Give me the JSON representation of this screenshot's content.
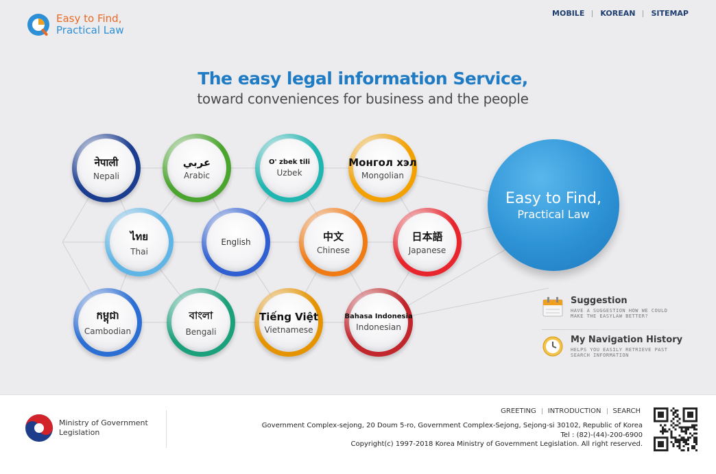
{
  "header": {
    "logo_line1": "Easy to Find,",
    "logo_line2": "Practical Law",
    "nav": [
      "MOBILE",
      "KOREAN",
      "SITEMAP"
    ]
  },
  "headline": {
    "title": "The  easy legal information Service,",
    "subtitle": "toward conveniences for business and the people"
  },
  "languages": [
    {
      "native": "नेपाली",
      "english": "Nepali",
      "ring": "#1a3d8f"
    },
    {
      "native": "عربي",
      "english": "Arabic",
      "ring": "#4aa52e"
    },
    {
      "native": "O' zbek  tili",
      "english": "Uzbek",
      "ring": "#1fb5b0"
    },
    {
      "native": "Монгол  хэл",
      "english": "Mongolian",
      "ring": "#f2a100"
    },
    {
      "native": "ไทย",
      "english": "Thai",
      "ring": "#5fb6e6"
    },
    {
      "native": "",
      "english": "English",
      "ring": "#2f5fd1"
    },
    {
      "native": "中文",
      "english": "Chinese",
      "ring": "#f07b14"
    },
    {
      "native": "日本語",
      "english": "Japanese",
      "ring": "#e8252d"
    },
    {
      "native": "កម្ពុជា",
      "english": "Cambodian",
      "ring": "#2c6fd4"
    },
    {
      "native": "বাংলা",
      "english": "Bengali",
      "ring": "#1aa07a"
    },
    {
      "native": "Tiếng Việt",
      "english": "Vietnamese",
      "ring": "#e59400"
    },
    {
      "native": "Bahasa Indonesia",
      "english": "Indonesian",
      "ring": "#c0262b"
    }
  ],
  "big_circle": {
    "line1": "Easy to Find,",
    "line2": "Practical Law"
  },
  "side_links": [
    {
      "title": "Suggestion",
      "desc1": "HAVE A SUGGESTION HOW WE COULD",
      "desc2": "MAKE THE EASYLAW BETTER?"
    },
    {
      "title": "My Navigation History",
      "desc1": "HELPS YOU EASILY RETRIEVE PAST",
      "desc2": "SEARCH INFORMATION"
    }
  ],
  "footer": {
    "org_line1": "Ministry of Government",
    "org_line2": "Legislation",
    "nav": [
      "GREETING",
      "INTRODUCTION",
      "SEARCH"
    ],
    "address": "Government Complex-sejong, 20 Doum 5-ro, Government Complex-Sejong, Sejong-si 30102, Republic of Korea",
    "tel": "Tel : (82)-(44)-200-6900",
    "copyright": "Copyright(c) 1997-2018 Korea Ministry of Government Legislation. All right reserved."
  },
  "colors": {
    "accent_blue": "#1f7cc4",
    "logo_orange": "#e86a24",
    "nav_navy": "#1d3d6e"
  }
}
